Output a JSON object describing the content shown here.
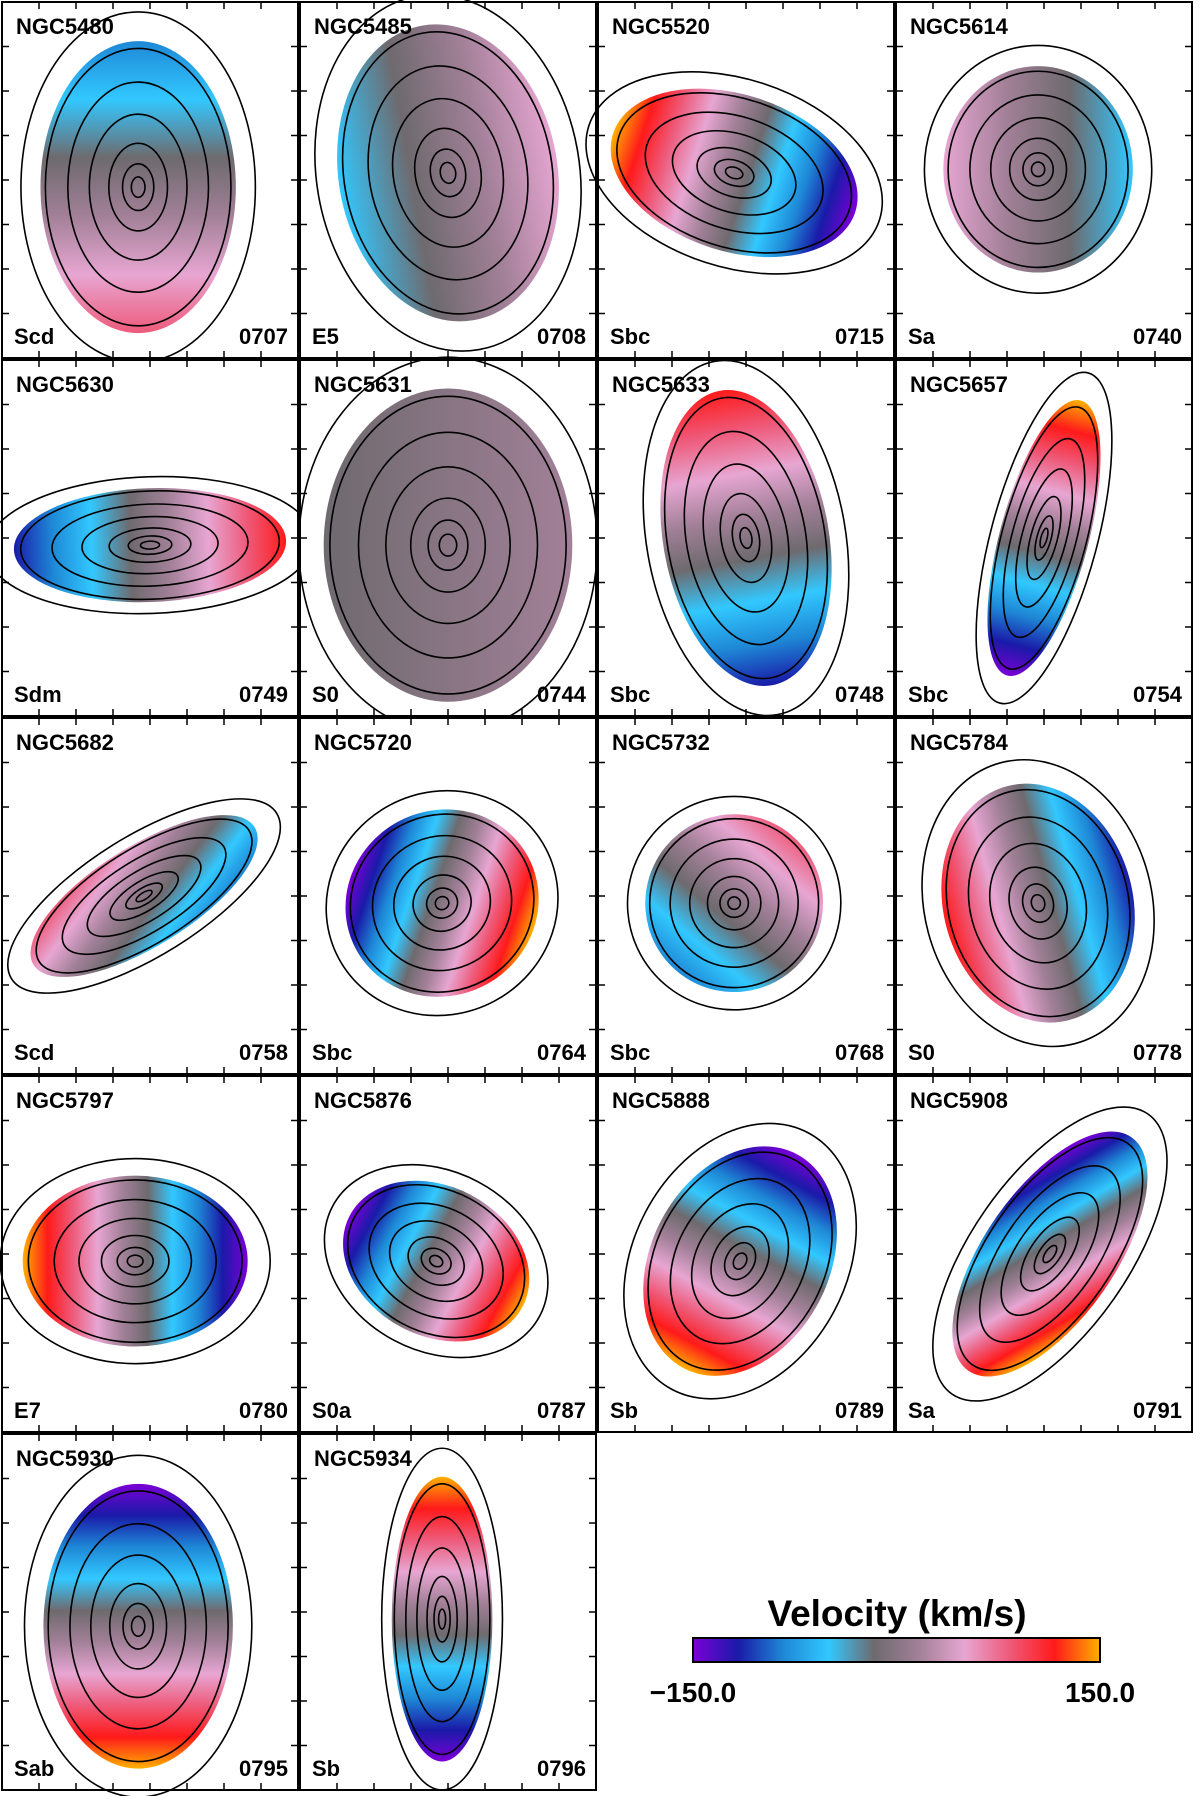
{
  "colorbar": {
    "title": "Velocity (km/s)",
    "min_label": "−150.0",
    "max_label": "150.0",
    "vmin": -150,
    "vmax": 150,
    "stops": [
      "#7b00d6",
      "#1a1aa8",
      "#1e88d6",
      "#32c8ff",
      "#6e6a6e",
      "#a28098",
      "#e7a6d2",
      "#ee5a7a",
      "#ff1a1a",
      "#ffb000"
    ]
  },
  "panels": [
    {
      "name": "NGC5480",
      "type": "Scd",
      "id": "0707",
      "velocity": {
        "approaching_side": "south",
        "amplitude": 0.55
      }
    },
    {
      "name": "NGC5485",
      "type": "E5",
      "id": "0708",
      "velocity": {
        "approaching_side": "west",
        "amplitude": 0.35
      }
    },
    {
      "name": "NGC5520",
      "type": "Sbc",
      "id": "0715",
      "velocity": {
        "approaching_side": "east",
        "amplitude": 0.9
      }
    },
    {
      "name": "NGC5614",
      "type": "Sa",
      "id": "0740",
      "velocity": {
        "approaching_side": "east",
        "amplitude": 0.35
      }
    },
    {
      "name": "NGC5630",
      "type": "Sdm",
      "id": "0749",
      "velocity": {
        "approaching_side": "west",
        "amplitude": 0.85
      }
    },
    {
      "name": "NGC5631",
      "type": "S0",
      "id": "0744",
      "velocity": {
        "approaching_side": "none",
        "amplitude": 0.1
      }
    },
    {
      "name": "NGC5633",
      "type": "Sbc",
      "id": "0748",
      "velocity": {
        "approaching_side": "north",
        "amplitude": 0.7
      }
    },
    {
      "name": "NGC5657",
      "type": "Sbc",
      "id": "0754",
      "velocity": {
        "approaching_side": "north",
        "amplitude": 0.95
      }
    },
    {
      "name": "NGC5682",
      "type": "Scd",
      "id": "0758",
      "velocity": {
        "approaching_side": "northeast",
        "amplitude": 0.5
      }
    },
    {
      "name": "NGC5720",
      "type": "Sbc",
      "id": "0764",
      "velocity": {
        "approaching_side": "southwest",
        "amplitude": 0.95
      }
    },
    {
      "name": "NGC5732",
      "type": "Sbc",
      "id": "0768",
      "velocity": {
        "approaching_side": "north",
        "amplitude": 0.6
      }
    },
    {
      "name": "NGC5784",
      "type": "S0",
      "id": "0778",
      "velocity": {
        "approaching_side": "east",
        "amplitude": 0.85
      }
    },
    {
      "name": "NGC5797",
      "type": "E7",
      "id": "0780",
      "velocity": {
        "approaching_side": "east",
        "amplitude": 0.9
      }
    },
    {
      "name": "NGC5876",
      "type": "S0a",
      "id": "0787",
      "velocity": {
        "approaching_side": "west",
        "amplitude": 1.0
      }
    },
    {
      "name": "NGC5888",
      "type": "Sb",
      "id": "0789",
      "velocity": {
        "approaching_side": "south",
        "amplitude": 1.0
      }
    },
    {
      "name": "NGC5908",
      "type": "Sa",
      "id": "0791",
      "velocity": {
        "approaching_side": "southwest",
        "amplitude": 1.0
      }
    },
    {
      "name": "NGC5930",
      "type": "Sab",
      "id": "0795",
      "velocity": {
        "approaching_side": "south",
        "amplitude": 1.0
      }
    },
    {
      "name": "NGC5934",
      "type": "Sb",
      "id": "0796",
      "velocity": {
        "approaching_side": "north",
        "amplitude": 0.95
      }
    }
  ]
}
